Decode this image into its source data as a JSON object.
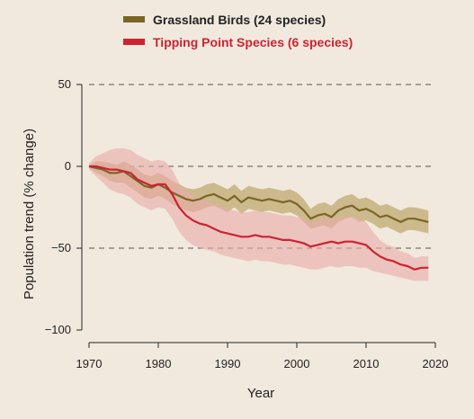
{
  "chart_data": {
    "type": "line",
    "title": "",
    "xlabel": "Year",
    "ylabel": "Population trend (% change)",
    "xlim": [
      1970,
      2020
    ],
    "ylim": [
      -100,
      50
    ],
    "xticks": [
      1970,
      1980,
      1990,
      2000,
      2010,
      2020
    ],
    "yticks": [
      50,
      0,
      -50,
      -100
    ],
    "ytick_labels": [
      "50",
      "0",
      "−50",
      "−100"
    ],
    "grid": "dashed horizontal at 50, 0, -50",
    "legend_position": "top",
    "series": [
      {
        "name": "Grassland Birds (24 species)",
        "color": "#7a6526",
        "band_color": "#c5b27f",
        "x": [
          1970,
          1971,
          1972,
          1973,
          1974,
          1975,
          1976,
          1977,
          1978,
          1979,
          1980,
          1981,
          1982,
          1983,
          1984,
          1985,
          1986,
          1987,
          1988,
          1989,
          1990,
          1991,
          1992,
          1993,
          1994,
          1995,
          1996,
          1997,
          1998,
          1999,
          2000,
          2001,
          2002,
          2003,
          2004,
          2005,
          2006,
          2007,
          2008,
          2009,
          2010,
          2011,
          2012,
          2013,
          2014,
          2015,
          2016,
          2017,
          2018,
          2019
        ],
        "values": [
          0,
          -1,
          -2,
          -4,
          -4,
          -3,
          -6,
          -9,
          -12,
          -13,
          -11,
          -13,
          -16,
          -18,
          -20,
          -21,
          -20,
          -18,
          -17,
          -19,
          -21,
          -18,
          -22,
          -19,
          -20,
          -21,
          -20,
          -21,
          -22,
          -21,
          -23,
          -27,
          -32,
          -30,
          -29,
          -31,
          -27,
          -25,
          -24,
          -27,
          -26,
          -28,
          -31,
          -30,
          -32,
          -34,
          -32,
          -32,
          -33,
          -34
        ],
        "lower": [
          -1,
          -4,
          -6,
          -9,
          -10,
          -10,
          -13,
          -16,
          -19,
          -20,
          -18,
          -20,
          -23,
          -25,
          -27,
          -28,
          -27,
          -25,
          -24,
          -26,
          -28,
          -25,
          -29,
          -26,
          -27,
          -28,
          -27,
          -28,
          -29,
          -28,
          -30,
          -34,
          -38,
          -37,
          -36,
          -38,
          -34,
          -32,
          -31,
          -34,
          -33,
          -35,
          -38,
          -37,
          -39,
          -41,
          -39,
          -39,
          -40,
          -41
        ],
        "upper": [
          1,
          3,
          3,
          2,
          1,
          3,
          1,
          -2,
          -5,
          -6,
          -4,
          -6,
          -9,
          -11,
          -13,
          -14,
          -13,
          -11,
          -10,
          -12,
          -14,
          -11,
          -15,
          -12,
          -13,
          -14,
          -13,
          -14,
          -15,
          -14,
          -16,
          -20,
          -26,
          -23,
          -22,
          -24,
          -20,
          -18,
          -17,
          -20,
          -19,
          -21,
          -24,
          -23,
          -25,
          -27,
          -25,
          -25,
          -26,
          -27
        ]
      },
      {
        "name": "Tipping Point Species (6 species)",
        "color": "#cc2333",
        "band_color": "#ebaaa9",
        "x": [
          1970,
          1971,
          1972,
          1973,
          1974,
          1975,
          1976,
          1977,
          1978,
          1979,
          1980,
          1981,
          1982,
          1983,
          1984,
          1985,
          1986,
          1987,
          1988,
          1989,
          1990,
          1991,
          1992,
          1993,
          1994,
          1995,
          1996,
          1997,
          1998,
          1999,
          2000,
          2001,
          2002,
          2003,
          2004,
          2005,
          2006,
          2007,
          2008,
          2009,
          2010,
          2011,
          2012,
          2013,
          2014,
          2015,
          2016,
          2017,
          2018,
          2019
        ],
        "values": [
          0,
          0,
          -1,
          -2,
          -2,
          -3,
          -4,
          -8,
          -10,
          -12,
          -11,
          -11,
          -17,
          -25,
          -30,
          -33,
          -35,
          -36,
          -38,
          -40,
          -41,
          -42,
          -43,
          -43,
          -42,
          -43,
          -43,
          -44,
          -45,
          -45,
          -46,
          -47,
          -49,
          -48,
          -47,
          -46,
          -47,
          -46,
          -46,
          -47,
          -48,
          -52,
          -55,
          -57,
          -58,
          -60,
          -61,
          -63,
          -62,
          -62
        ],
        "lower": [
          -2,
          -6,
          -10,
          -14,
          -16,
          -17,
          -19,
          -23,
          -25,
          -27,
          -25,
          -26,
          -32,
          -40,
          -45,
          -48,
          -50,
          -51,
          -52,
          -54,
          -55,
          -56,
          -57,
          -58,
          -57,
          -58,
          -58,
          -59,
          -60,
          -60,
          -61,
          -62,
          -63,
          -63,
          -62,
          -61,
          -62,
          -61,
          -61,
          -62,
          -62,
          -64,
          -65,
          -66,
          -67,
          -68,
          -69,
          -70,
          -70,
          -70
        ],
        "upper": [
          2,
          6,
          8,
          10,
          11,
          11,
          10,
          7,
          5,
          3,
          4,
          3,
          -2,
          -10,
          -15,
          -18,
          -20,
          -21,
          -23,
          -25,
          -26,
          -27,
          -28,
          -28,
          -27,
          -28,
          -28,
          -29,
          -30,
          -30,
          -31,
          -32,
          -34,
          -33,
          -32,
          -31,
          -32,
          -31,
          -31,
          -32,
          -34,
          -40,
          -45,
          -48,
          -49,
          -52,
          -53,
          -56,
          -55,
          -55
        ]
      }
    ]
  }
}
